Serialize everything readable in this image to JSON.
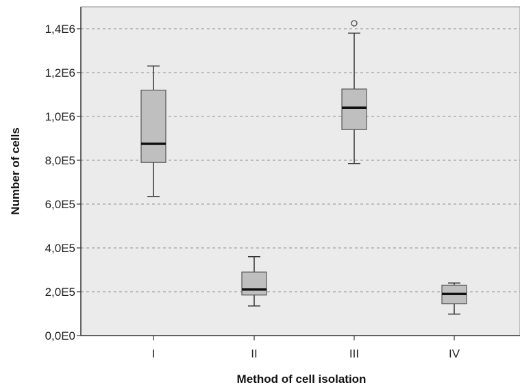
{
  "chart_data": {
    "type": "boxplot",
    "xlabel": "Method of cell isolation",
    "ylabel": "Number of cells",
    "ylim": [
      0,
      1500000
    ],
    "y_ticks": [
      0,
      200000,
      400000,
      600000,
      800000,
      1000000,
      1200000,
      1400000
    ],
    "y_tick_labels": [
      "0,0E0",
      "2,0E5",
      "4,0E5",
      "6,0E5",
      "8,0E5",
      "1,0E6",
      "1,2E6",
      "1,4E6"
    ],
    "grid": "horizontal-dashed",
    "categories": [
      "I",
      "II",
      "III",
      "IV"
    ],
    "boxes": [
      {
        "category": "I",
        "min": 635000,
        "q1": 790000,
        "median": 875000,
        "q3": 1120000,
        "max": 1230000,
        "outliers": []
      },
      {
        "category": "II",
        "min": 135000,
        "q1": 185000,
        "median": 210000,
        "q3": 290000,
        "max": 360000,
        "outliers": []
      },
      {
        "category": "III",
        "min": 785000,
        "q1": 940000,
        "median": 1040000,
        "q3": 1125000,
        "max": 1380000,
        "outliers": [
          1425000
        ]
      },
      {
        "category": "IV",
        "min": 98000,
        "q1": 145000,
        "median": 190000,
        "q3": 230000,
        "max": 240000,
        "outliers": []
      }
    ],
    "colors": {
      "plot_background": "#ebebeb",
      "box_fill": "#bfbfbf",
      "box_stroke": "#555555",
      "median": "#111111",
      "whisker": "#333333",
      "grid": "#8c8c8c",
      "axis": "#333333"
    }
  }
}
